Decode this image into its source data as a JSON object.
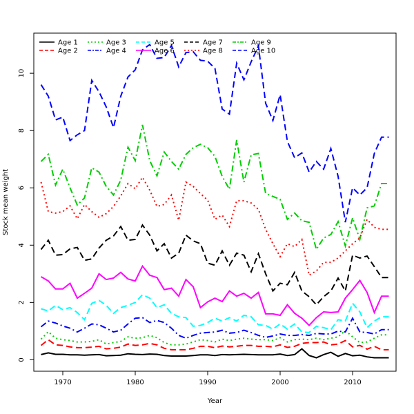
{
  "chart_data": {
    "type": "line",
    "title": "",
    "xlabel": "Year",
    "ylabel": "Stock mean weight",
    "xlim": [
      1966,
      2016
    ],
    "ylim": [
      -0.4,
      11.4
    ],
    "xticks": [
      1970,
      1980,
      1990,
      2000,
      2010
    ],
    "yticks": [
      0,
      2,
      4,
      6,
      8,
      10
    ],
    "grid": false,
    "legend_position": "top-left",
    "x": [
      1967,
      1968,
      1969,
      1970,
      1971,
      1972,
      1973,
      1974,
      1975,
      1976,
      1977,
      1978,
      1979,
      1980,
      1981,
      1982,
      1983,
      1984,
      1985,
      1986,
      1987,
      1988,
      1989,
      1990,
      1991,
      1992,
      1993,
      1994,
      1995,
      1996,
      1997,
      1998,
      1999,
      2000,
      2001,
      2002,
      2003,
      2004,
      2005,
      2006,
      2007,
      2008,
      2009,
      2010,
      2011,
      2012,
      2013,
      2014,
      2015
    ],
    "series": [
      {
        "name": "Age 1",
        "color": "#000000",
        "dash": "solid",
        "values": [
          0.18,
          0.24,
          0.19,
          0.19,
          0.17,
          0.17,
          0.16,
          0.17,
          0.18,
          0.14,
          0.15,
          0.16,
          0.21,
          0.19,
          0.18,
          0.2,
          0.19,
          0.15,
          0.13,
          0.13,
          0.13,
          0.15,
          0.17,
          0.17,
          0.15,
          0.18,
          0.17,
          0.18,
          0.19,
          0.18,
          0.17,
          0.17,
          0.17,
          0.2,
          0.15,
          0.18,
          0.38,
          0.15,
          0.07,
          0.18,
          0.26,
          0.12,
          0.22,
          0.14,
          0.16,
          0.1,
          0.07,
          0.07,
          0.07
        ]
      },
      {
        "name": "Age 2",
        "color": "#ff0000",
        "dash": "long",
        "values": [
          0.5,
          0.7,
          0.52,
          0.5,
          0.45,
          0.42,
          0.42,
          0.44,
          0.47,
          0.38,
          0.4,
          0.44,
          0.55,
          0.5,
          0.52,
          0.57,
          0.52,
          0.4,
          0.35,
          0.35,
          0.35,
          0.4,
          0.47,
          0.47,
          0.42,
          0.48,
          0.45,
          0.47,
          0.5,
          0.5,
          0.47,
          0.47,
          0.45,
          0.52,
          0.43,
          0.47,
          0.57,
          0.6,
          0.6,
          0.62,
          0.52,
          0.55,
          0.67,
          0.45,
          0.5,
          0.37,
          0.47,
          0.35,
          0.35
        ]
      },
      {
        "name": "Age 3",
        "color": "#00cd00",
        "dash": "dotted",
        "values": [
          0.72,
          0.98,
          0.75,
          0.7,
          0.67,
          0.62,
          0.62,
          0.64,
          0.7,
          0.55,
          0.6,
          0.64,
          0.8,
          0.75,
          0.77,
          0.85,
          0.77,
          0.6,
          0.52,
          0.52,
          0.55,
          0.62,
          0.7,
          0.67,
          0.62,
          0.72,
          0.67,
          0.72,
          0.75,
          0.72,
          0.7,
          0.7,
          0.67,
          0.77,
          0.62,
          0.7,
          0.72,
          0.7,
          0.75,
          0.7,
          0.75,
          0.8,
          1.02,
          0.8,
          0.6,
          0.62,
          0.75,
          0.87,
          0.87
        ]
      },
      {
        "name": "Age 4",
        "color": "#0000ff",
        "dash": "dashdot",
        "values": [
          1.15,
          1.35,
          1.28,
          1.18,
          1.1,
          0.97,
          1.1,
          1.25,
          1.22,
          1.1,
          0.97,
          1.03,
          1.25,
          1.45,
          1.47,
          1.3,
          1.37,
          1.3,
          1.1,
          0.85,
          0.75,
          0.85,
          0.93,
          0.95,
          0.97,
          1.03,
          0.93,
          0.95,
          1.03,
          0.95,
          0.85,
          0.78,
          0.83,
          0.9,
          0.85,
          0.85,
          0.88,
          0.85,
          0.92,
          0.9,
          0.9,
          1.0,
          0.97,
          1.45,
          0.97,
          0.95,
          0.9,
          1.05,
          1.05
        ]
      },
      {
        "name": "Age 5",
        "color": "#00ffff",
        "dash": "long",
        "values": [
          1.78,
          1.7,
          1.9,
          1.75,
          1.82,
          1.65,
          1.4,
          1.97,
          2.07,
          1.9,
          1.62,
          1.82,
          1.9,
          2.0,
          2.27,
          2.15,
          1.82,
          1.92,
          1.62,
          1.5,
          1.47,
          1.17,
          1.2,
          1.3,
          1.45,
          1.35,
          1.47,
          1.35,
          1.55,
          1.5,
          1.22,
          1.2,
          1.07,
          1.25,
          1.07,
          1.25,
          0.97,
          0.95,
          1.17,
          1.12,
          1.05,
          1.4,
          1.35,
          1.97,
          1.67,
          1.12,
          1.35,
          1.5,
          1.5
        ]
      },
      {
        "name": "Age 6",
        "color": "#ff00ff",
        "dash": "solid",
        "values": [
          2.9,
          2.75,
          2.47,
          2.47,
          2.67,
          2.15,
          2.32,
          2.5,
          3.0,
          2.8,
          2.85,
          3.05,
          2.82,
          2.75,
          3.27,
          2.95,
          2.87,
          2.45,
          2.5,
          2.22,
          2.8,
          2.55,
          1.82,
          2.02,
          2.15,
          2.03,
          2.4,
          2.22,
          2.32,
          2.15,
          2.35,
          1.6,
          1.6,
          1.55,
          1.92,
          1.62,
          1.45,
          1.2,
          1.47,
          1.67,
          1.65,
          1.67,
          2.15,
          2.45,
          2.77,
          2.35,
          1.65,
          2.22,
          2.22
        ]
      },
      {
        "name": "Age 7",
        "color": "#000000",
        "dash": "long",
        "values": [
          3.85,
          4.17,
          3.65,
          3.67,
          3.87,
          3.92,
          3.47,
          3.52,
          3.9,
          4.17,
          4.32,
          4.65,
          4.17,
          4.2,
          4.7,
          4.35,
          3.8,
          4.05,
          3.55,
          3.72,
          4.35,
          4.15,
          4.05,
          3.37,
          3.3,
          3.8,
          3.3,
          3.72,
          3.65,
          3.07,
          3.7,
          3.0,
          2.4,
          2.67,
          2.62,
          3.05,
          2.4,
          2.2,
          1.92,
          2.2,
          2.4,
          2.85,
          2.4,
          3.65,
          3.55,
          3.62,
          3.25,
          2.87,
          2.87
        ]
      },
      {
        "name": "Age 8",
        "color": "#ff0000",
        "dash": "dotted",
        "values": [
          6.2,
          5.17,
          5.12,
          5.17,
          5.37,
          4.92,
          5.42,
          5.17,
          4.97,
          5.1,
          5.35,
          5.72,
          6.15,
          5.97,
          6.37,
          5.92,
          5.35,
          5.42,
          5.75,
          4.87,
          6.2,
          6.05,
          5.8,
          5.57,
          4.9,
          5.05,
          4.65,
          5.55,
          5.55,
          5.47,
          5.25,
          4.55,
          4.05,
          3.6,
          4.05,
          3.95,
          4.2,
          2.95,
          3.1,
          3.4,
          3.4,
          3.55,
          3.8,
          4.05,
          4.25,
          4.9,
          4.62,
          4.55,
          4.55
        ]
      },
      {
        "name": "Age 9",
        "color": "#00cd00",
        "dash": "dashdot",
        "values": [
          6.92,
          7.17,
          6.1,
          6.65,
          6.0,
          5.4,
          5.65,
          6.7,
          6.55,
          6.05,
          5.75,
          6.27,
          7.42,
          6.95,
          8.2,
          6.95,
          6.42,
          7.25,
          6.92,
          6.65,
          7.17,
          7.4,
          7.52,
          7.4,
          7.1,
          6.4,
          5.95,
          7.67,
          6.2,
          7.15,
          7.2,
          5.8,
          5.7,
          5.6,
          4.9,
          5.12,
          4.85,
          4.8,
          3.85,
          4.25,
          4.37,
          4.82,
          3.97,
          4.95,
          4.2,
          5.3,
          5.37,
          6.15,
          6.15
        ]
      },
      {
        "name": "Age 10",
        "color": "#0000ff",
        "dash": "long",
        "values": [
          9.6,
          9.2,
          8.37,
          8.47,
          7.65,
          7.85,
          8.0,
          9.75,
          9.35,
          8.82,
          8.1,
          9.2,
          9.87,
          10.12,
          10.82,
          11.0,
          10.52,
          10.55,
          10.97,
          10.22,
          10.72,
          10.75,
          10.45,
          10.42,
          10.17,
          8.75,
          8.57,
          10.35,
          9.77,
          10.4,
          10.95,
          8.95,
          8.35,
          9.25,
          7.62,
          7.05,
          7.22,
          6.55,
          6.92,
          6.65,
          7.37,
          6.4,
          4.8,
          6.0,
          5.75,
          6.0,
          7.2,
          7.77,
          7.77
        ]
      }
    ]
  }
}
